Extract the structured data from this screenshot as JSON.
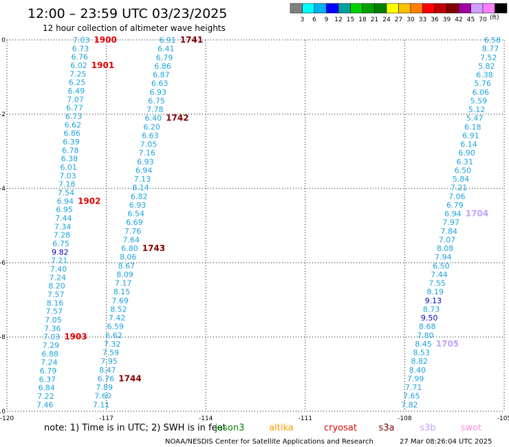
{
  "header": {
    "title": "12:00 – 23:59 UTC 03/23/2025",
    "subtitle": "12 hour collection of altimeter wave heights"
  },
  "legend": {
    "values": [
      "3",
      "6",
      "9",
      "12",
      "15",
      "18",
      "21",
      "24",
      "27",
      "30",
      "33",
      "36",
      "39",
      "42",
      "45",
      "70"
    ],
    "unit": "(ft)",
    "colors": [
      "#808080",
      "#00ffff",
      "#00b0f0",
      "#0000ff",
      "#00a0a0",
      "#00d000",
      "#00a000",
      "#008000",
      "#ffff00",
      "#ffc000",
      "#ff8000",
      "#ff0000",
      "#c00000",
      "#800000",
      "#a000a0",
      "#d0a0ff",
      "#ff80ff",
      "#000000"
    ]
  },
  "footer": {
    "note": "note:  1) Time is in UTC; 2) SWH is in feet",
    "satellites": [
      {
        "name": "jason3",
        "color": "#008000"
      },
      {
        "name": "altika",
        "color": "#ff9900"
      },
      {
        "name": "cryosat",
        "color": "#e00000"
      },
      {
        "name": "s3a",
        "color": "#800000"
      },
      {
        "name": "s3b",
        "color": "#c0a0ff"
      },
      {
        "name": "swot",
        "color": "#ff90e0"
      }
    ],
    "credit": "NOAA/NESDIS Center for Satellite Applications and Research",
    "timestamp": "27 Mar 08:26:04 UTC 2025"
  },
  "chart_data": {
    "type": "scatter",
    "title": "12:00 – 23:59 UTC 03/23/2025",
    "xlim": [
      -120,
      -105
    ],
    "ylim": [
      -10,
      0
    ],
    "xticks": [
      "-120",
      "-117",
      "-114",
      "-111",
      "-108",
      "-105"
    ],
    "yticks": [
      "0",
      "-2",
      "-4",
      "-6",
      "-8",
      "-10"
    ],
    "grid": true,
    "tracks": [
      {
        "values": [
          "7.03",
          "6.73",
          "6.76",
          "6.02",
          "7.25",
          "6.25",
          "6.49",
          "7.07",
          "6.77",
          "6.73",
          "6.62",
          "6.86",
          "6.39",
          "6.78",
          "6.38",
          "6.01",
          "7.03",
          "7.18",
          "7.54",
          "6.94",
          "6.95",
          "7.44",
          "7.34",
          "7.28",
          "6.75",
          "9.82",
          "7.21",
          "7.40",
          "7.24",
          "8.20",
          "7.57",
          "8.16",
          "7.57",
          "7.05",
          "7.36",
          "7.03",
          "7.29",
          "6.88",
          "7.24",
          "6.79",
          "6.37",
          "6.84",
          "7.22",
          "7.46"
        ],
        "lon_start": -117.5,
        "lon_end": -118.6,
        "lat_start": 0.0,
        "lat_end": -9.82,
        "times": [
          {
            "label": "1900",
            "index": 0,
            "color": "#e00000"
          },
          {
            "label": "1901",
            "index": 3,
            "color": "#e00000"
          },
          {
            "label": "1902",
            "index": 19,
            "color": "#e00000"
          },
          {
            "label": "1903",
            "index": 35,
            "color": "#e00000"
          }
        ]
      },
      {
        "values": [
          "6.91",
          "6.41",
          "6.79",
          "6.86",
          "6.87",
          "6.63",
          "6.93",
          "6.75",
          "7.78",
          "6.40",
          "6.20",
          "6.63",
          "7.05",
          "7.16",
          "6.93",
          "6.94",
          "7.13",
          "8.14",
          "6.82",
          "6.93",
          "6.54",
          "6.69",
          "7.76",
          "7.64",
          "6.80",
          "8.06",
          "8.67",
          "8.09",
          "7.17",
          "8.15",
          "7.69",
          "8.52",
          "7.42",
          "6.59",
          "6.62",
          "7.32",
          "7.59",
          "7.95",
          "8.47",
          "6.76",
          "7.89",
          "7.60",
          "7.11"
        ],
        "lon_start": -114.9,
        "lon_end": -116.9,
        "lat_start": 0.0,
        "lat_end": -9.82,
        "times": [
          {
            "label": "1741",
            "index": 0,
            "color": "#800000"
          },
          {
            "label": "1742",
            "index": 9,
            "color": "#800000"
          },
          {
            "label": "1743",
            "index": 24,
            "color": "#800000"
          },
          {
            "label": "1744",
            "index": 39,
            "color": "#800000"
          }
        ]
      },
      {
        "values": [
          "6.58",
          "8.77",
          "7.52",
          "5.82",
          "6.38",
          "5.76",
          "6.06",
          "5.59",
          "5.12",
          "5.47",
          "6.18",
          "6.91",
          "6.14",
          "6.90",
          "6.31",
          "6.50",
          "5.84",
          "7.21",
          "7.06",
          "6.79",
          "6.94",
          "7.97",
          "7.84",
          "7.07",
          "8.08",
          "7.94",
          "6.50",
          "7.44",
          "7.55",
          "8.19",
          "9.13",
          "8.73",
          "9.50",
          "8.68",
          "7.80",
          "8.45",
          "8.53",
          "8.82",
          "8.40",
          "7.99",
          "7.71",
          "7.65",
          "7.82"
        ],
        "lon_start": -105.1,
        "lon_end": -107.6,
        "lat_start": 0.0,
        "lat_end": -9.82,
        "times": [
          {
            "label": "1704",
            "index": 20,
            "color": "#c0a0ff"
          },
          {
            "label": "1705",
            "index": 35,
            "color": "#c0a0ff"
          }
        ]
      }
    ]
  }
}
